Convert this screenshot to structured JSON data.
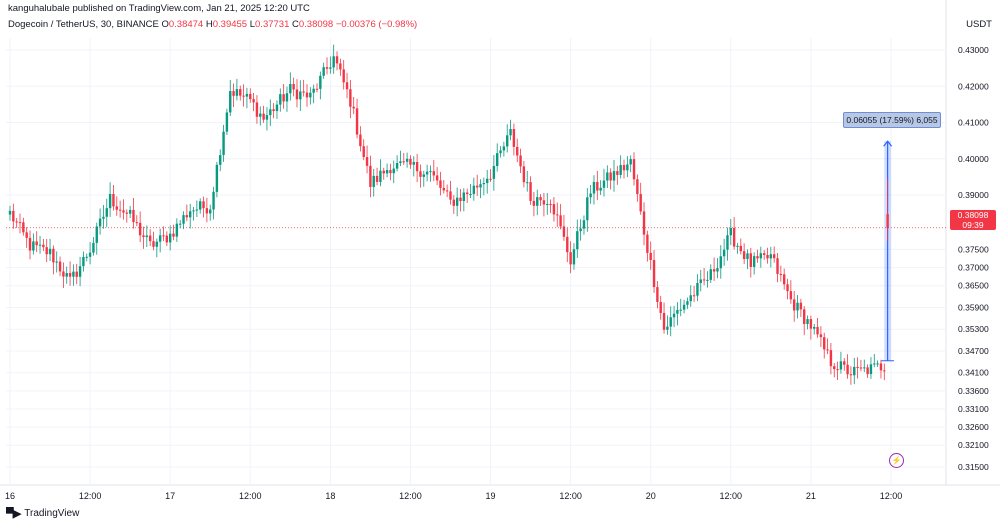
{
  "header": {
    "publisher": "kanguhalubale published on TradingView.com, Jan 21, 2025 12:20 UTC",
    "symbol": "Dogecoin / TetherUS, 30, BINANCE",
    "open_label": "O",
    "open": "0.38474",
    "high_label": "H",
    "high": "0.39455",
    "low_label": "L",
    "low": "0.37731",
    "close_label": "C",
    "close": "0.38098",
    "change": "−0.00376 (−0.98%)"
  },
  "currency": "USDT",
  "price_tag": {
    "price": "0.38098",
    "countdown": "09:39"
  },
  "measure": {
    "label": "0.06055 (17.59%) 6,055"
  },
  "footer": {
    "brand": "TradingView"
  },
  "colors": {
    "up": "#089981",
    "down": "#f23645",
    "grid": "#f0f3fa",
    "measure": "#2962ff"
  },
  "chart_data": {
    "type": "candlestick",
    "y_ticks": [
      "0.43000",
      "0.42000",
      "0.41000",
      "0.40000",
      "0.39000",
      "0.38098",
      "0.37500",
      "0.37000",
      "0.36500",
      "0.35900",
      "0.35300",
      "0.34700",
      "0.34100",
      "0.33600",
      "0.33100",
      "0.32600",
      "0.32100",
      "0.31500"
    ],
    "ylim": [
      0.3145,
      0.4337
    ],
    "x_ticks": [
      "16",
      "12:00",
      "17",
      "12:00",
      "18",
      "12:00",
      "19",
      "12:00",
      "20",
      "12:00",
      "21",
      "12:00"
    ],
    "x_tick_index": [
      0,
      24,
      48,
      72,
      96,
      120,
      144,
      168,
      192,
      216,
      240,
      264
    ],
    "candle_count": 264,
    "anchors": [
      [
        0,
        0.385
      ],
      [
        6,
        0.376
      ],
      [
        12,
        0.374
      ],
      [
        18,
        0.366
      ],
      [
        24,
        0.375
      ],
      [
        30,
        0.389
      ],
      [
        36,
        0.384
      ],
      [
        42,
        0.376
      ],
      [
        48,
        0.379
      ],
      [
        54,
        0.386
      ],
      [
        60,
        0.387
      ],
      [
        66,
        0.419
      ],
      [
        72,
        0.416
      ],
      [
        76,
        0.411
      ],
      [
        84,
        0.419
      ],
      [
        90,
        0.417
      ],
      [
        97,
        0.428
      ],
      [
        102,
        0.416
      ],
      [
        108,
        0.393
      ],
      [
        114,
        0.398
      ],
      [
        120,
        0.398
      ],
      [
        126,
        0.396
      ],
      [
        132,
        0.388
      ],
      [
        138,
        0.391
      ],
      [
        144,
        0.396
      ],
      [
        150,
        0.407
      ],
      [
        156,
        0.389
      ],
      [
        162,
        0.389
      ],
      [
        168,
        0.372
      ],
      [
        174,
        0.391
      ],
      [
        180,
        0.395
      ],
      [
        186,
        0.399
      ],
      [
        190,
        0.38
      ],
      [
        196,
        0.353
      ],
      [
        200,
        0.358
      ],
      [
        204,
        0.362
      ],
      [
        210,
        0.368
      ],
      [
        216,
        0.379
      ],
      [
        222,
        0.371
      ],
      [
        228,
        0.373
      ],
      [
        234,
        0.361
      ],
      [
        240,
        0.354
      ],
      [
        246,
        0.344
      ],
      [
        252,
        0.341
      ],
      [
        258,
        0.342
      ],
      [
        262,
        0.343
      ],
      [
        264,
        0.381
      ]
    ],
    "last_candle": {
      "open": 0.38474,
      "high": 0.39455,
      "low": 0.37731,
      "close": 0.38098
    },
    "measure": {
      "from": 0.3443,
      "to": 0.40485,
      "change": 0.06055,
      "percent": 17.59,
      "ticks": 6055
    },
    "current_price": 0.38098
  }
}
